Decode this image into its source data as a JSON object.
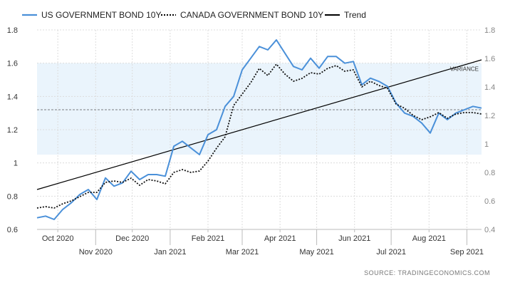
{
  "chart_data": {
    "type": "line",
    "title": "",
    "xlabel": "",
    "ylabel": "",
    "ylim": [
      0.6,
      1.8
    ],
    "y2lim": [
      0.4,
      1.8
    ],
    "yticks": [
      "0.6",
      "0.8",
      "1",
      "1.2",
      "1.4",
      "1.6",
      "1.8"
    ],
    "y2ticks": [
      "0.4",
      "0.6",
      "0.8",
      "1",
      "1.2",
      "1.4",
      "1.6",
      "1.8"
    ],
    "xticks_top": [
      {
        "label": "Oct 2020",
        "date": "2020-10-01"
      },
      {
        "label": "Dec 2020",
        "date": "2020-12-01"
      },
      {
        "label": "Feb 2021",
        "date": "2021-02-01"
      },
      {
        "label": "Apr 2021",
        "date": "2021-04-01"
      },
      {
        "label": "Jun 2021",
        "date": "2021-06-01"
      },
      {
        "label": "Aug 2021",
        "date": "2021-08-01"
      }
    ],
    "xticks_bottom": [
      {
        "label": "Nov 2020",
        "date": "2020-11-01"
      },
      {
        "label": "Jan 2021",
        "date": "2021-01-01"
      },
      {
        "label": "Mar 2021",
        "date": "2021-03-01"
      },
      {
        "label": "May 2021",
        "date": "2021-05-01"
      },
      {
        "label": "Jul 2021",
        "date": "2021-07-01"
      },
      {
        "label": "Sep 2021",
        "date": "2021-09-01"
      }
    ],
    "xlim": [
      "2020-09-14",
      "2021-09-13"
    ],
    "legend": {
      "placement": "top-left",
      "entries": [
        {
          "name": "US GOVERNMENT BOND 10Y",
          "style": "solid",
          "color": "#4a90d9"
        },
        {
          "name": "CANADA GOVERNMENT BOND 10Y",
          "style": "dotted",
          "color": "#000000"
        },
        {
          "name": "Trend",
          "style": "solid",
          "color": "#000000"
        }
      ]
    },
    "variance_band": {
      "label": "VARIANCE",
      "y_range": [
        1.05,
        1.6
      ],
      "color": "#eaf4fc"
    },
    "reference_line": {
      "y": 1.32
    },
    "trend": {
      "x": [
        "2020-09-14",
        "2021-09-13"
      ],
      "y": [
        0.84,
        1.62
      ]
    },
    "series": [
      {
        "name": "US GOVERNMENT BOND 10Y",
        "axis": "left",
        "x": [
          "2020-09-14",
          "2020-09-21",
          "2020-09-28",
          "2020-10-05",
          "2020-10-12",
          "2020-10-19",
          "2020-10-26",
          "2020-11-02",
          "2020-11-09",
          "2020-11-16",
          "2020-11-23",
          "2020-11-30",
          "2020-12-07",
          "2020-12-14",
          "2020-12-21",
          "2020-12-28",
          "2021-01-04",
          "2021-01-11",
          "2021-01-18",
          "2021-01-25",
          "2021-02-01",
          "2021-02-08",
          "2021-02-15",
          "2021-02-22",
          "2021-03-01",
          "2021-03-08",
          "2021-03-15",
          "2021-03-22",
          "2021-03-29",
          "2021-04-05",
          "2021-04-12",
          "2021-04-19",
          "2021-04-26",
          "2021-05-03",
          "2021-05-10",
          "2021-05-17",
          "2021-05-24",
          "2021-05-31",
          "2021-06-07",
          "2021-06-14",
          "2021-06-21",
          "2021-06-28",
          "2021-07-05",
          "2021-07-12",
          "2021-07-19",
          "2021-07-26",
          "2021-08-02",
          "2021-08-09",
          "2021-08-16",
          "2021-08-23",
          "2021-08-30",
          "2021-09-06",
          "2021-09-13"
        ],
        "y": [
          0.67,
          0.68,
          0.66,
          0.72,
          0.76,
          0.81,
          0.84,
          0.78,
          0.91,
          0.86,
          0.88,
          0.95,
          0.9,
          0.93,
          0.93,
          0.92,
          1.1,
          1.13,
          1.09,
          1.05,
          1.17,
          1.2,
          1.34,
          1.4,
          1.56,
          1.63,
          1.7,
          1.68,
          1.74,
          1.66,
          1.58,
          1.56,
          1.63,
          1.57,
          1.64,
          1.64,
          1.6,
          1.61,
          1.47,
          1.51,
          1.49,
          1.46,
          1.36,
          1.3,
          1.28,
          1.24,
          1.18,
          1.3,
          1.26,
          1.3,
          1.32,
          1.34,
          1.33
        ]
      },
      {
        "name": "CANADA GOVERNMENT BOND 10Y",
        "axis": "right",
        "x": [
          "2020-09-14",
          "2020-09-21",
          "2020-09-28",
          "2020-10-05",
          "2020-10-12",
          "2020-10-19",
          "2020-10-26",
          "2020-11-02",
          "2020-11-09",
          "2020-11-16",
          "2020-11-23",
          "2020-11-30",
          "2020-12-07",
          "2020-12-14",
          "2020-12-21",
          "2020-12-28",
          "2021-01-04",
          "2021-01-11",
          "2021-01-18",
          "2021-01-25",
          "2021-02-01",
          "2021-02-08",
          "2021-02-15",
          "2021-02-22",
          "2021-03-01",
          "2021-03-08",
          "2021-03-15",
          "2021-03-22",
          "2021-03-29",
          "2021-04-05",
          "2021-04-12",
          "2021-04-19",
          "2021-04-26",
          "2021-05-03",
          "2021-05-10",
          "2021-05-17",
          "2021-05-24",
          "2021-05-31",
          "2021-06-07",
          "2021-06-14",
          "2021-06-21",
          "2021-06-28",
          "2021-07-05",
          "2021-07-12",
          "2021-07-19",
          "2021-07-26",
          "2021-08-02",
          "2021-08-09",
          "2021-08-16",
          "2021-08-23",
          "2021-08-30",
          "2021-09-06",
          "2021-09-13"
        ],
        "y": [
          0.55,
          0.56,
          0.55,
          0.58,
          0.6,
          0.63,
          0.66,
          0.66,
          0.73,
          0.74,
          0.73,
          0.76,
          0.71,
          0.75,
          0.74,
          0.72,
          0.8,
          0.82,
          0.8,
          0.81,
          0.88,
          0.97,
          1.05,
          1.27,
          1.35,
          1.43,
          1.53,
          1.48,
          1.56,
          1.49,
          1.44,
          1.46,
          1.5,
          1.49,
          1.53,
          1.55,
          1.51,
          1.52,
          1.4,
          1.44,
          1.41,
          1.39,
          1.28,
          1.25,
          1.2,
          1.17,
          1.19,
          1.22,
          1.18,
          1.21,
          1.22,
          1.22,
          1.21
        ]
      }
    ],
    "source": "SOURCE:  TRADINGECONOMICS.COM"
  }
}
